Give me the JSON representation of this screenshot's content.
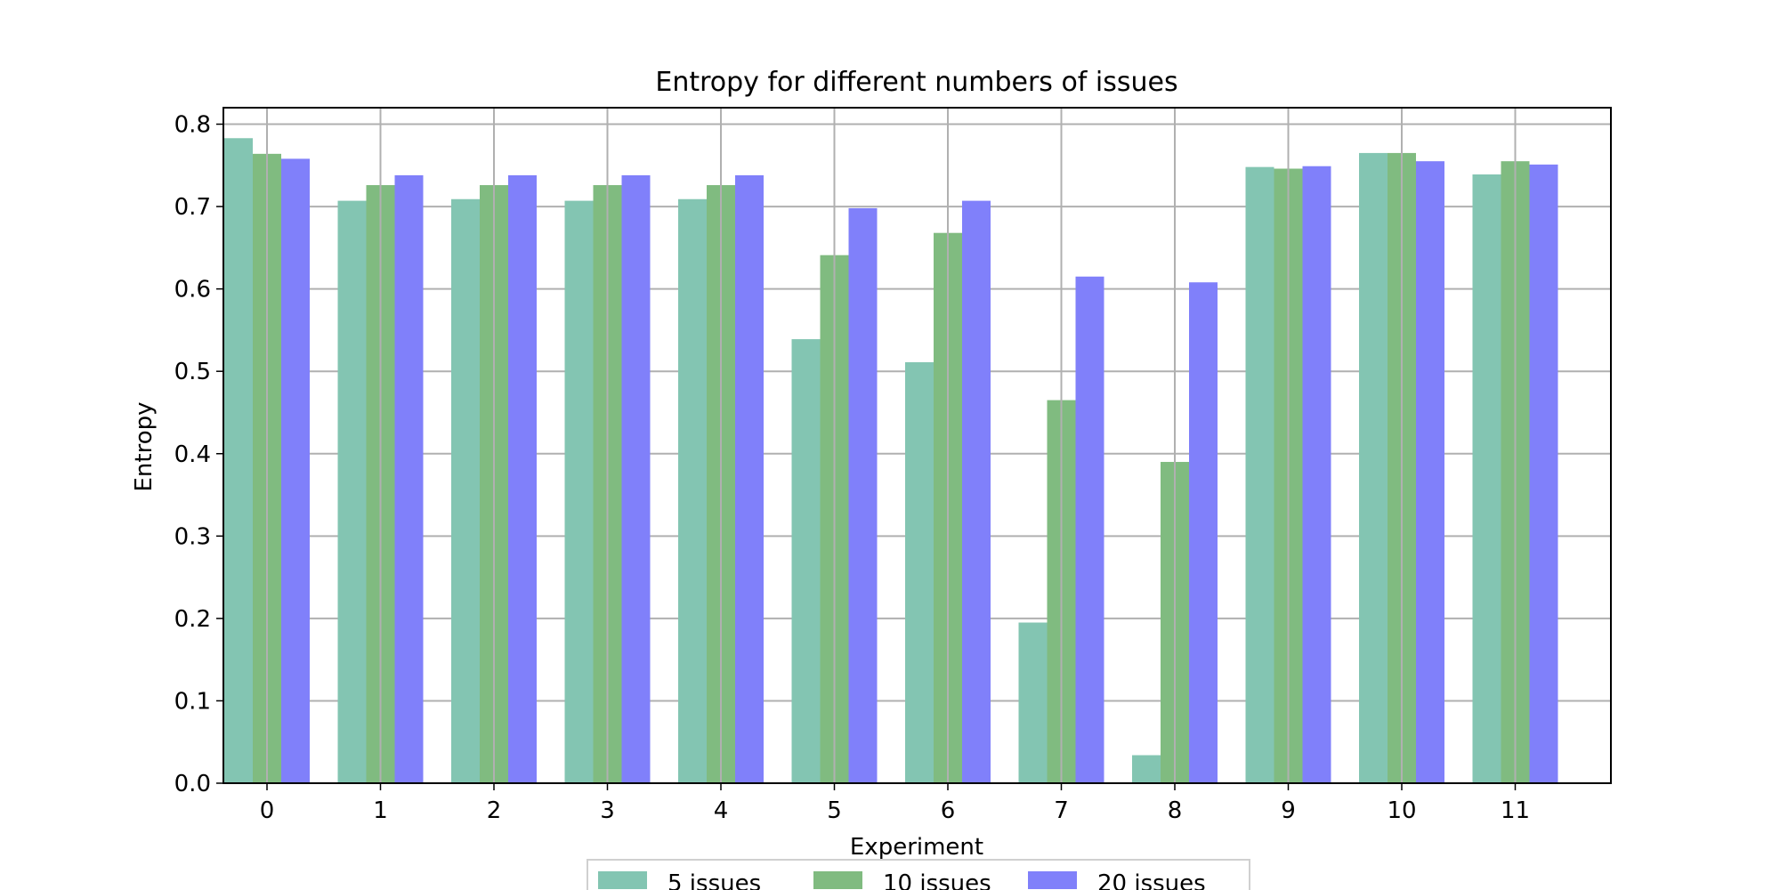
{
  "chart_data": {
    "type": "bar",
    "title": "Entropy for different numbers of issues",
    "xlabel": "Experiment",
    "ylabel": "Entropy",
    "categories": [
      "0",
      "1",
      "2",
      "3",
      "4",
      "5",
      "6",
      "7",
      "8",
      "9",
      "10",
      "11"
    ],
    "series": [
      {
        "name": "5 issues",
        "color": "#83c5b2",
        "values": [
          0.783,
          0.707,
          0.709,
          0.707,
          0.709,
          0.539,
          0.511,
          0.195,
          0.034,
          0.748,
          0.765,
          0.739
        ]
      },
      {
        "name": "10 issues",
        "color": "#80bb80",
        "values": [
          0.764,
          0.726,
          0.726,
          0.726,
          0.726,
          0.641,
          0.668,
          0.465,
          0.39,
          0.746,
          0.765,
          0.755
        ]
      },
      {
        "name": "20 issues",
        "color": "#8080fa",
        "values": [
          0.758,
          0.738,
          0.738,
          0.738,
          0.738,
          0.698,
          0.707,
          0.615,
          0.608,
          0.749,
          0.755,
          0.751
        ]
      }
    ],
    "ylim": [
      0,
      0.82
    ],
    "yticks": [
      "0.0",
      "0.1",
      "0.2",
      "0.3",
      "0.4",
      "0.5",
      "0.6",
      "0.7",
      "0.8"
    ],
    "grid": true,
    "legend": "bottom-center"
  }
}
